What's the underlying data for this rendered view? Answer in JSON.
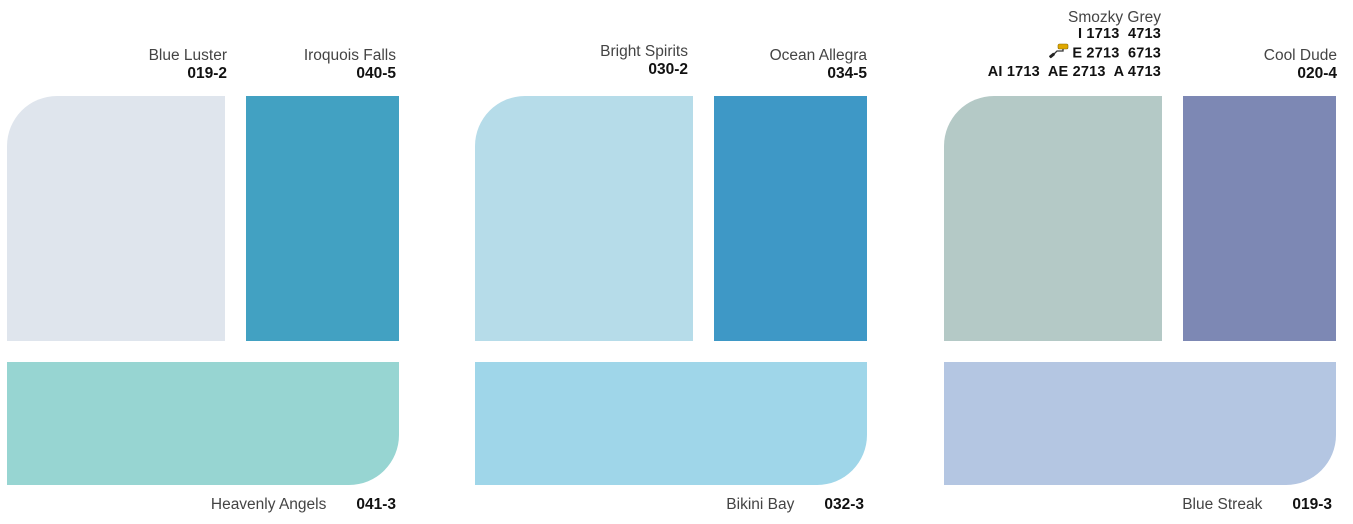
{
  "groups": [
    {
      "top_left": {
        "name": "Blue Luster",
        "code": "019-2",
        "color": "#dfe5ed"
      },
      "top_right": {
        "name": "Iroquois Falls",
        "code": "040-5",
        "color": "#42a1c2"
      },
      "bottom": {
        "name": "Heavenly Angels",
        "code": "041-3",
        "color": "#97d5d2"
      }
    },
    {
      "top_left": {
        "name": "Bright Spirits",
        "code": "030-2",
        "color": "#b6dce9"
      },
      "top_right": {
        "name": "Ocean Allegra",
        "code": "034-5",
        "color": "#3e98c6"
      },
      "bottom": {
        "name": "Bikini Bay",
        "code": "032-3",
        "color": "#9fd6e9"
      }
    },
    {
      "top_left": {
        "name": "Smozky Grey",
        "color": "#b4c9c6",
        "code_lines": [
          "I 1713  4713",
          "E 2713  6713",
          "AI 1713  AE 2713  A 4713"
        ],
        "icon": "paint-roller-icon"
      },
      "top_right": {
        "name": "Cool Dude",
        "code": "020-4",
        "color": "#7d88b4"
      },
      "bottom": {
        "name": "Blue Streak",
        "code": "019-3",
        "color": "#b4c6e2"
      }
    }
  ]
}
